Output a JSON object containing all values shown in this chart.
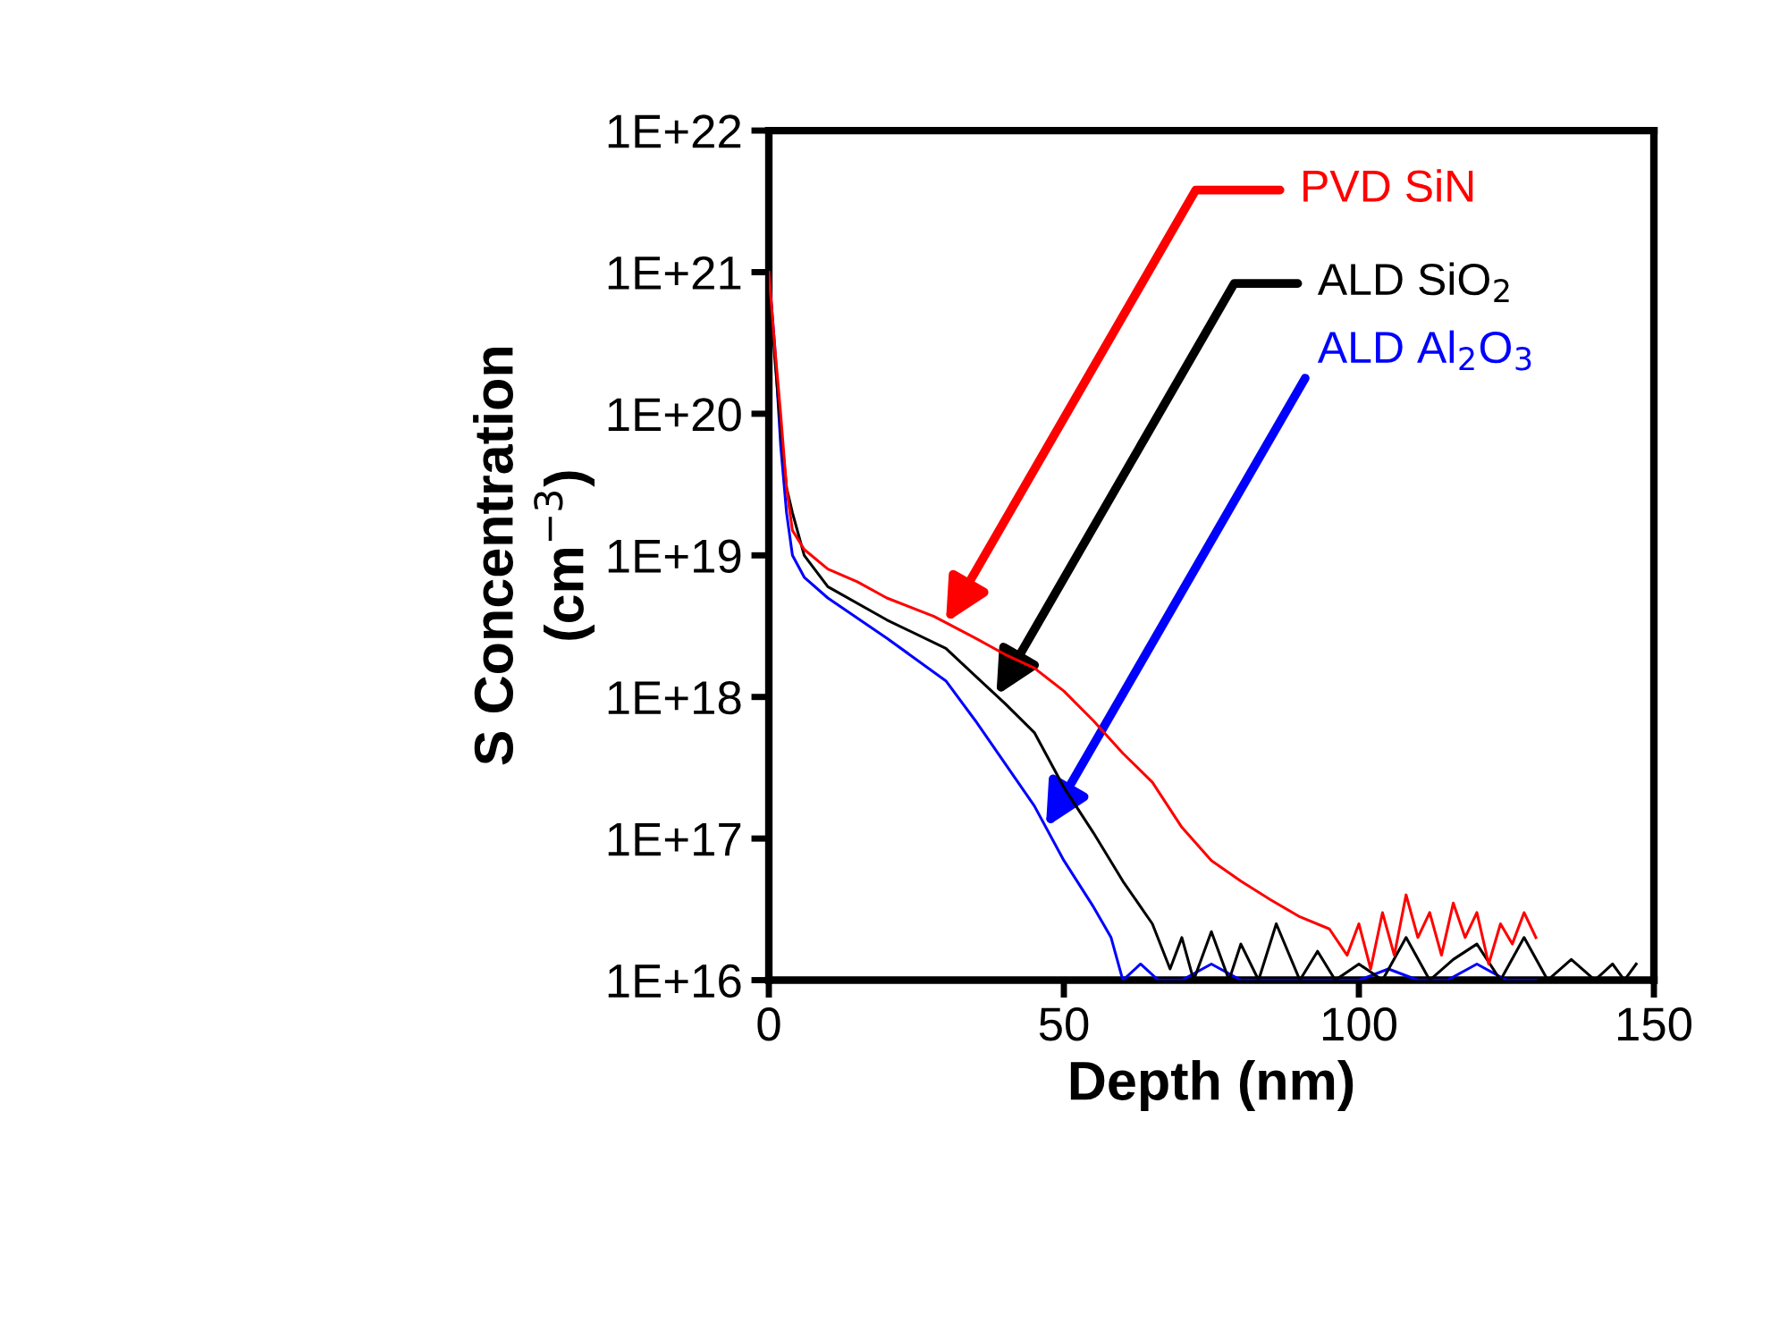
{
  "chart_data": {
    "type": "line",
    "xlabel": "Depth (nm)",
    "ylabel": "S Concentration\n(cm$^{−3}$)",
    "log": "y",
    "xlim": [
      0,
      150
    ],
    "xticks": [
      0,
      50,
      100,
      150
    ],
    "ylim": [
      1e+16,
      1e+22
    ],
    "yticks": [
      {
        "value": 1e+16,
        "label": "1E+16"
      },
      {
        "value": 1e+17,
        "label": "1E+17"
      },
      {
        "value": 1e+18,
        "label": "1E+18"
      },
      {
        "value": 1e+19,
        "label": "1E+19"
      },
      {
        "value": 1e+20,
        "label": "1E+20"
      },
      {
        "value": 1e+21,
        "label": "1E+21"
      },
      {
        "value": 1e+22,
        "label": "1E+22"
      }
    ],
    "grid": false,
    "marker": "none",
    "line_style": "solid",
    "series": [
      {
        "name": "PVD SiN",
        "color": "#ff0000",
        "x": [
          0,
          1,
          2,
          3,
          4,
          6,
          10,
          15,
          20,
          28,
          35,
          40,
          45,
          50,
          55,
          60,
          65,
          70,
          75,
          80,
          85,
          90,
          95,
          98,
          100,
          102,
          104,
          106,
          108,
          110,
          112,
          114,
          116,
          118,
          120,
          122,
          124,
          126,
          128,
          130
        ],
        "values": [
          1e+21,
          3e+20,
          1e+20,
          3e+19,
          1.5e+19,
          1.1e+19,
          8e+18,
          6.5e+18,
          5e+18,
          3.7e+18,
          2.6e+18,
          2e+18,
          1.6e+18,
          1.1e+18,
          6.8e+17,
          4e+17,
          2.5e+17,
          1.2e+17,
          7e+16,
          5e+16,
          3.7e+16,
          2.8e+16,
          2.3e+16,
          1.5e+16,
          2.5e+16,
          1.2e+16,
          3e+16,
          1.5e+16,
          4e+16,
          2e+16,
          3e+16,
          1.5e+16,
          3.5e+16,
          2e+16,
          3e+16,
          1.3e+16,
          2.5e+16,
          1.8e+16,
          3e+16,
          2e+16
        ]
      },
      {
        "name": "ALD SiO$_{2}$",
        "color": "#000000",
        "x": [
          0,
          1,
          2,
          3,
          4,
          6,
          10,
          20,
          30,
          40,
          45,
          50,
          55,
          60,
          65,
          68,
          70,
          72,
          75,
          78,
          80,
          83,
          86,
          90,
          93,
          96,
          100,
          104,
          108,
          112,
          116,
          120,
          124,
          128,
          132,
          136,
          140,
          143,
          145,
          147
        ],
        "values": [
          1e+21,
          2.5e+20,
          8e+19,
          3e+19,
          2e+19,
          1e+19,
          6e+18,
          3.5e+18,
          2.2e+18,
          9e+17,
          5.6e+17,
          2.3e+17,
          1.1e+17,
          5e+16,
          2.5e+16,
          1.2e+16,
          2e+16,
          1e+16,
          2.2e+16,
          1e+16,
          1.8e+16,
          1e+16,
          2.5e+16,
          1e+16,
          1.6e+16,
          1e+16,
          1.3e+16,
          1e+16,
          2e+16,
          1e+16,
          1.4e+16,
          1.8e+16,
          1e+16,
          2e+16,
          1e+16,
          1.4e+16,
          1e+16,
          1.3e+16,
          1e+16,
          1.3e+16
        ]
      },
      {
        "name": "ALD Al$_{2}$O$_{3}$",
        "color": "#0000ff",
        "x": [
          0,
          1,
          2,
          3,
          4,
          6,
          10,
          20,
          30,
          35,
          40,
          45,
          50,
          55,
          58,
          60,
          63,
          66,
          70,
          75,
          80,
          85,
          90,
          95,
          100,
          105,
          110,
          115,
          120,
          125,
          130
        ],
        "values": [
          1e+21,
          3e+20,
          6e+19,
          2e+19,
          1e+19,
          7e+18,
          5e+18,
          2.6e+18,
          1.3e+18,
          6.8e+17,
          3.4e+17,
          1.7e+17,
          7e+16,
          3.3e+16,
          2e+16,
          1e+16,
          1.3e+16,
          1e+16,
          1e+16,
          1.3e+16,
          1e+16,
          1e+16,
          1e+16,
          1e+16,
          1e+16,
          1.2e+16,
          1e+16,
          1e+16,
          1.3e+16,
          1e+16,
          1e+16
        ]
      }
    ]
  }
}
